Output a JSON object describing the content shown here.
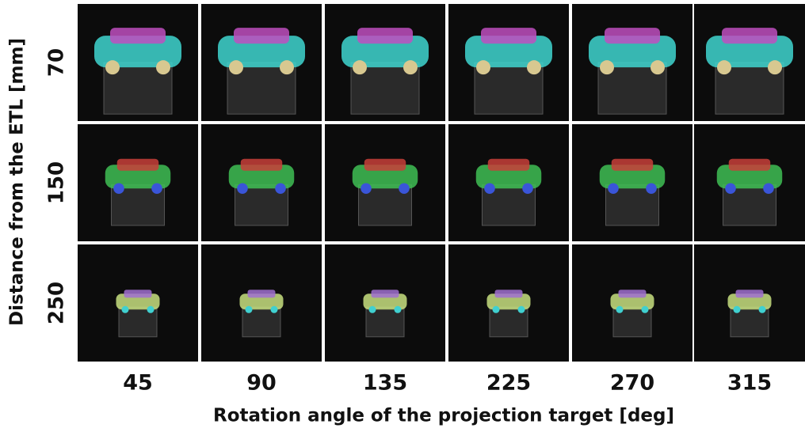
{
  "figure": {
    "y_label": "Distance from the ETL [mm]",
    "rows": [
      70,
      150,
      250
    ],
    "columns": [
      45,
      90,
      135,
      225,
      270,
      315
    ],
    "x_label": "Rotation angle of the projection target [deg]"
  }
}
